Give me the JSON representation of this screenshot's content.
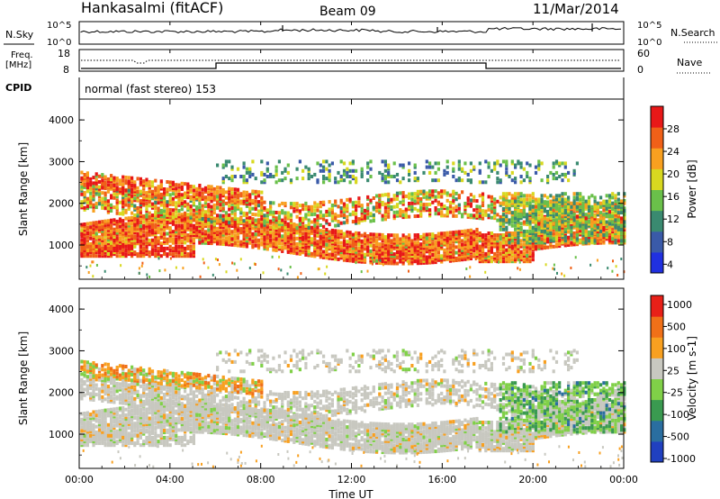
{
  "header": {
    "station": "Hankasalmi (fitACF)",
    "beam": "Beam 09",
    "date": "11/Mar/2014"
  },
  "noise_panel": {
    "left_label": "N.Sky",
    "left_ticks": [
      "10^5",
      "10^0"
    ],
    "right_label": "N.Search",
    "right_ticks": [
      "10^5",
      "10^0"
    ]
  },
  "freq_panel": {
    "left_label_line1": "Freq.",
    "left_label_line2": "[MHz]",
    "left_ticks": [
      "18",
      "8"
    ],
    "right_label": "Nave",
    "right_ticks": [
      "60",
      "0"
    ]
  },
  "cpid_panel": {
    "label": "CPID",
    "text": "normal (fast stereo) 153"
  },
  "chart_data": [
    {
      "type": "heatmap",
      "name": "power",
      "ylabel": "Slant Range [km]",
      "y_ticks": [
        "4000",
        "3000",
        "2000",
        "1000"
      ],
      "ylim": [
        180,
        4500
      ],
      "colorbar_label": "Power [dB]",
      "colorbar_ticks": [
        "28",
        "24",
        "20",
        "16",
        "12",
        "8",
        "4"
      ],
      "colorbar_colors": [
        "#2030e0",
        "#3a5aa8",
        "#3a8a70",
        "#6ac04a",
        "#d8d820",
        "#f8a020",
        "#f06018",
        "#e81818"
      ]
    },
    {
      "type": "heatmap",
      "name": "velocity",
      "ylabel": "Slant Range [km]",
      "y_ticks": [
        "4000",
        "3000",
        "2000",
        "1000"
      ],
      "ylim": [
        180,
        4500
      ],
      "colorbar_label": "Velocity [m s-1]",
      "colorbar_ticks": [
        "1000",
        "500",
        "100",
        "25",
        "-25",
        "-100",
        "-500",
        "-1000"
      ],
      "colorbar_colors": [
        "#2040c0",
        "#2a6ea0",
        "#3a9a50",
        "#80d048",
        "#c8c8c0",
        "#f8a020",
        "#f07018",
        "#e82018"
      ]
    }
  ],
  "x_axis": {
    "label": "Time UT",
    "ticks": [
      "00:00",
      "04:00",
      "08:00",
      "12:00",
      "16:00",
      "20:00",
      "00:00"
    ]
  },
  "colors": {
    "scatter_grey": "#c8c8c0"
  }
}
